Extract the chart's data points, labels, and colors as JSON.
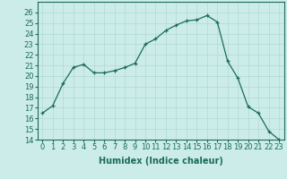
{
  "x": [
    0,
    1,
    2,
    3,
    4,
    5,
    6,
    7,
    8,
    9,
    10,
    11,
    12,
    13,
    14,
    15,
    16,
    17,
    18,
    19,
    20,
    21,
    22,
    23
  ],
  "y": [
    16.5,
    17.2,
    19.3,
    20.8,
    21.1,
    20.3,
    20.3,
    20.5,
    20.8,
    21.2,
    23.0,
    23.5,
    24.3,
    24.8,
    25.2,
    25.3,
    25.7,
    25.1,
    21.4,
    19.8,
    17.1,
    16.5,
    14.8,
    14.0
  ],
  "line_color": "#1a6b5a",
  "marker": "+",
  "marker_size": 3,
  "bg_color": "#ccecea",
  "grid_color": "#b0d8d5",
  "xlabel": "Humidex (Indice chaleur)",
  "ylim": [
    14,
    27
  ],
  "xlim": [
    -0.5,
    23.5
  ],
  "yticks": [
    14,
    15,
    16,
    17,
    18,
    19,
    20,
    21,
    22,
    23,
    24,
    25,
    26
  ],
  "xticks": [
    0,
    1,
    2,
    3,
    4,
    5,
    6,
    7,
    8,
    9,
    10,
    11,
    12,
    13,
    14,
    15,
    16,
    17,
    18,
    19,
    20,
    21,
    22,
    23
  ],
  "label_fontsize": 7,
  "tick_fontsize": 6
}
